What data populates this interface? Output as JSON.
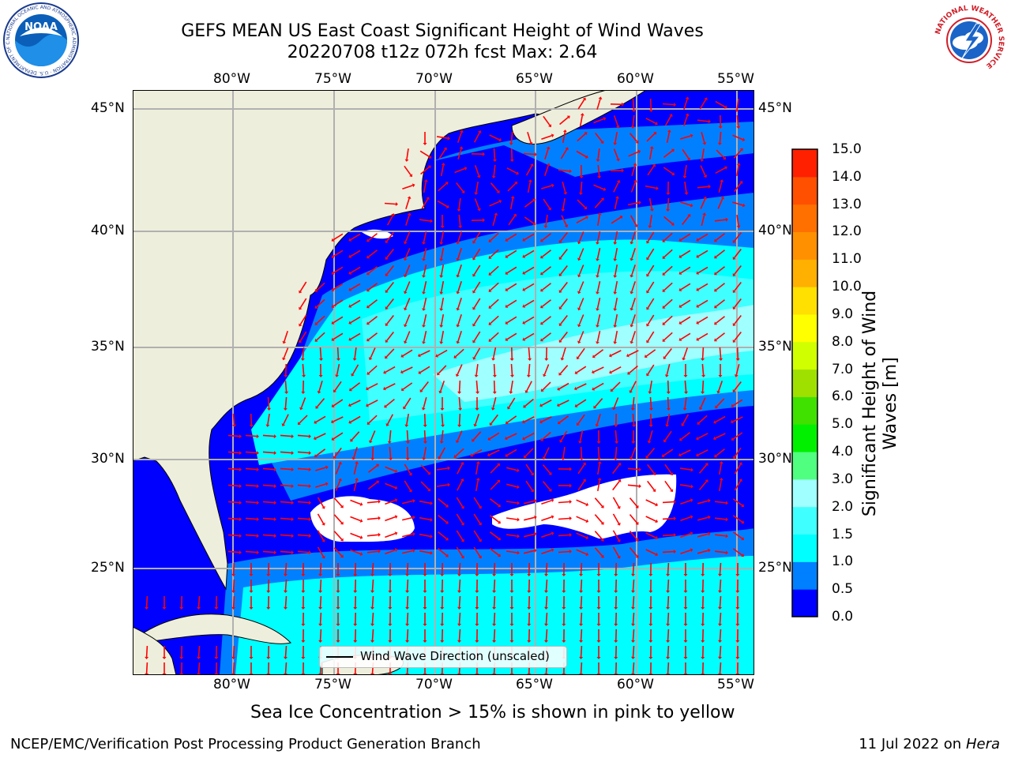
{
  "title_line1": "GEFS MEAN US East Coast Significant Height of Wind Waves",
  "title_line2": "20220708 t12z 072h fcst    Max: 2.64",
  "lon_labels": [
    "80°W",
    "75°W",
    "70°W",
    "65°W",
    "60°W",
    "55°W"
  ],
  "lat_labels": [
    "45°N",
    "40°N",
    "35°N",
    "30°N",
    "25°N"
  ],
  "colorbar": {
    "label_line1": "Significant Height of Wind",
    "label_line2": "Waves [m]",
    "ticks": [
      "15.0",
      "14.0",
      "13.0",
      "12.0",
      "11.0",
      "10.0",
      "9.0",
      "8.0",
      "7.0",
      "6.0",
      "5.0",
      "4.0",
      "3.0",
      "2.0",
      "1.5",
      "1.0",
      "0.5",
      "0.0"
    ],
    "colors": [
      "#0000ff",
      "#0080ff",
      "#00ffff",
      "#40ffff",
      "#a0ffff",
      "#50ff80",
      "#00f000",
      "#40e000",
      "#a0e000",
      "#d0ff00",
      "#ffff00",
      "#ffe000",
      "#ffb000",
      "#ff9000",
      "#ff7000",
      "#ff5000",
      "#ff2000",
      "#ff0000"
    ]
  },
  "legend_text": "Wind Wave Direction (unscaled)",
  "sea_ice_note": "Sea Ice Concentration > 15% is shown in pink to yellow",
  "footer_left": "NCEP/EMC/Verification Post Processing Product Generation Branch",
  "footer_right_date": "11 Jul 2022 on ",
  "footer_right_machine": "Hera",
  "logos": {
    "noaa_text": "NOAA",
    "noaa_ring": "NATIONAL OCEANIC AND ATMOSPHERIC ADMINISTRATION · U.S. DEPARTMENT OF COMMERCE",
    "nws_ring": "NATIONAL WEATHER SERVICE"
  },
  "colors": {
    "land": "#eeeedc",
    "ocean_low": "#0000ff",
    "ocean_mid": "#0080ff",
    "ocean_high": "#00ffff",
    "arrow": "#ff0000"
  }
}
